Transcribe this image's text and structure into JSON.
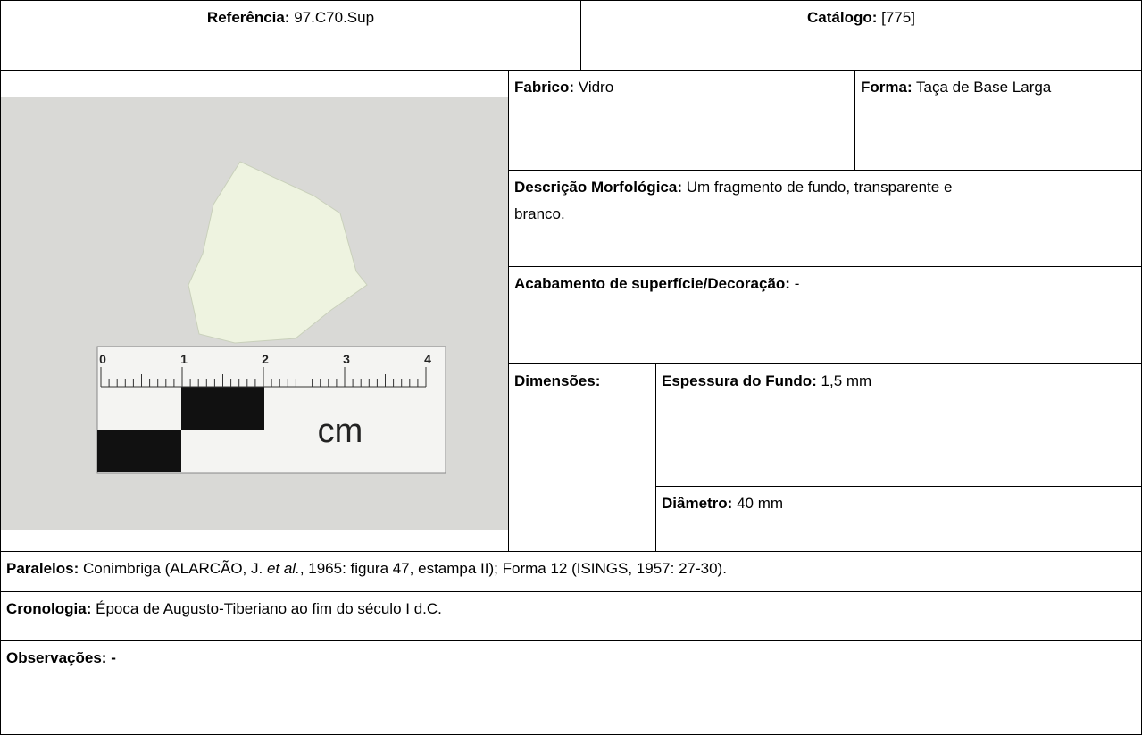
{
  "header": {
    "referencia": {
      "label": "Referência:",
      "value": "97.C70.Sup"
    },
    "catalogo": {
      "label": "Catálogo:",
      "value": "[775]"
    }
  },
  "fabrico": {
    "label": "Fabrico:",
    "value": "Vidro"
  },
  "forma": {
    "label": "Forma:",
    "value": "Taça de Base Larga"
  },
  "descricao": {
    "label": "Descrição Morfológica:",
    "value": "Um fragmento de fundo, transparente e branco."
  },
  "acabamento": {
    "label": "Acabamento de superfície/Decoração:",
    "value": "-"
  },
  "dimensoes": {
    "label": "Dimensões:",
    "espessura": {
      "label": "Espessura do Fundo:",
      "value": "1,5 mm"
    },
    "diametro": {
      "label": "Diâmetro:",
      "value": "40 mm"
    }
  },
  "paralelos": {
    "label": "Paralelos:",
    "parts": [
      "Conimbriga (ALARCÃO, J. ",
      "et al.",
      ", 1965: figura 47, estampa II); Forma 12 (ISINGS, 1957: 27-30)."
    ]
  },
  "cronologia": {
    "label": "Cronologia:",
    "value": "Época de Augusto-Tiberiano ao fim do século I d.C."
  },
  "observacoes": {
    "label": "Observações:",
    "value": "-"
  },
  "photo": {
    "scale_labels": [
      "0",
      "1",
      "2",
      "3",
      "4"
    ],
    "unit": "cm"
  }
}
